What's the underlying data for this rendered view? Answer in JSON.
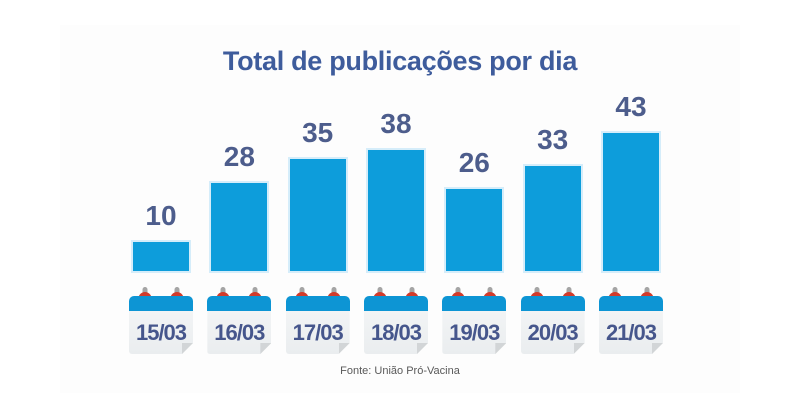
{
  "title": "Total de publicações por dia",
  "source_note": "Fonte: União Pró-Vacina",
  "colors": {
    "bar_color": "#0D9DDB",
    "bar_edge": "#D5EDFA",
    "strip_color": "#0D95D4",
    "pin_red": "#D23B2B",
    "pin_stem": "#A5A5A5",
    "fold_color": "#D2D5D7",
    "title_color": "#3E5C9C",
    "label_color": "#4D5D8C",
    "date_color": "#46568C",
    "source_color": "#595959",
    "panel_bg": "#FDFDFD"
  },
  "chart_data": {
    "type": "bar",
    "title": "Total de publicações por dia",
    "categories": [
      "15/03",
      "16/03",
      "17/03",
      "18/03",
      "19/03",
      "20/03",
      "21/03"
    ],
    "values": [
      10,
      28,
      35,
      38,
      26,
      33,
      43
    ],
    "xlabel": "",
    "ylabel": "",
    "ylim": [
      0,
      45
    ],
    "grid": false,
    "legend": "none",
    "data_labels": true,
    "category_icon": "calendar-icon",
    "source": "Fonte: União Pró-Vacina"
  }
}
